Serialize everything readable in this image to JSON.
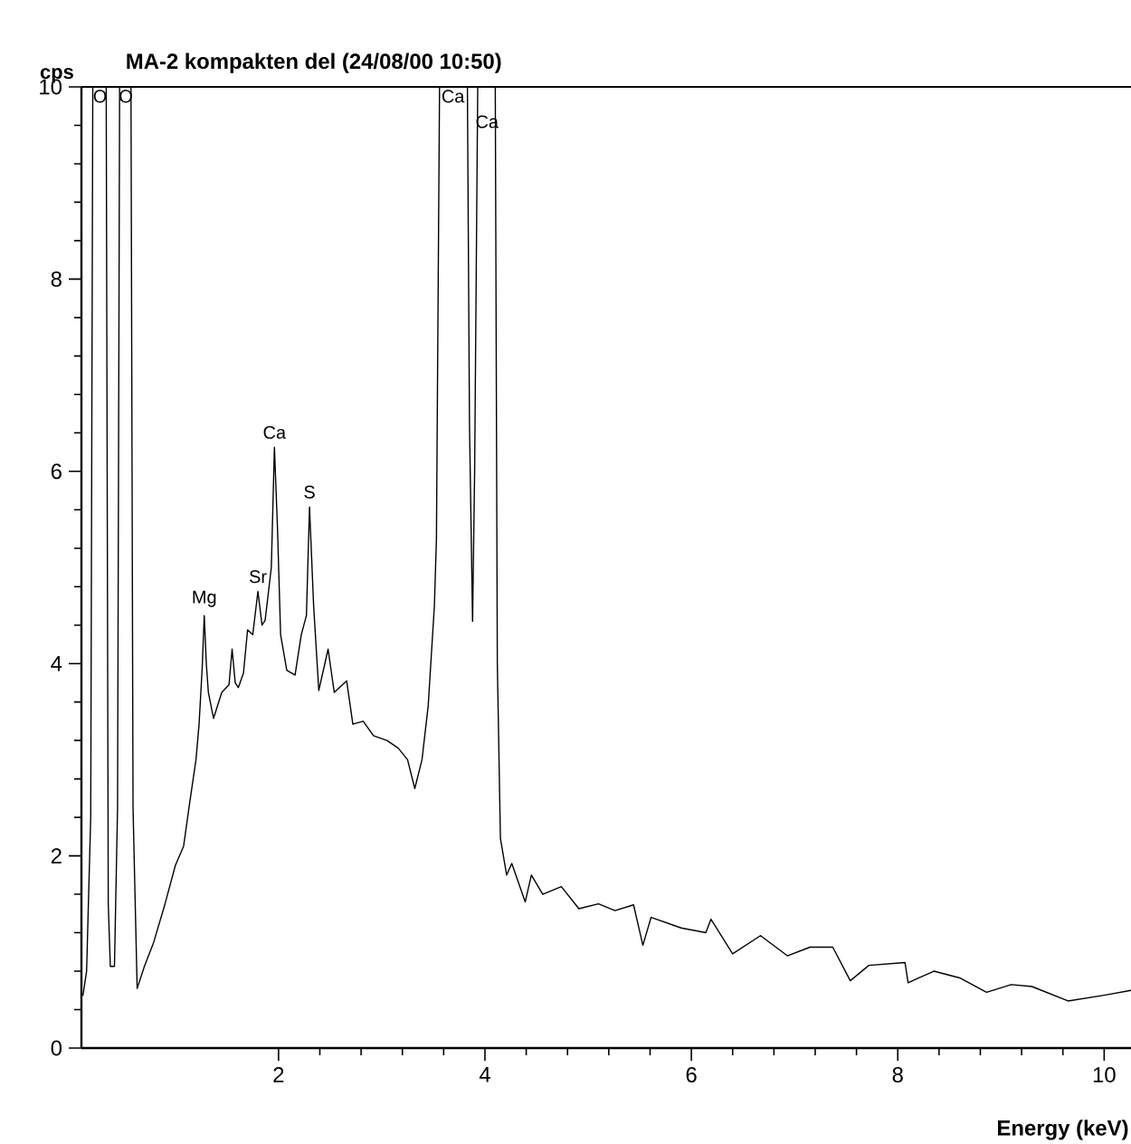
{
  "chart_data": {
    "type": "line",
    "title": "MA-2  kompakten del (24/08/00 10:50)",
    "xlabel": "Energy (keV)",
    "ylabel": "cps",
    "xlim": [
      0.09,
      10.26
    ],
    "ylim": [
      0,
      10
    ],
    "xticks": [
      2,
      4,
      6,
      8,
      10
    ],
    "yticks": [
      0,
      2,
      4,
      6,
      8,
      10
    ],
    "grid": false,
    "marker": "none",
    "line_style": "solid",
    "series": [
      {
        "color": "#000000",
        "x": [
          0.105,
          0.14,
          0.18,
          0.2,
          0.33,
          0.35,
          0.37,
          0.41,
          0.44,
          0.46,
          0.57,
          0.59,
          0.63,
          0.7,
          0.79,
          0.9,
          1.0,
          1.08,
          1.14,
          1.2,
          1.23,
          1.26,
          1.28,
          1.3,
          1.32,
          1.37,
          1.45,
          1.52,
          1.55,
          1.58,
          1.61,
          1.66,
          1.7,
          1.75,
          1.8,
          1.84,
          1.87,
          1.93,
          1.96,
          1.99,
          2.02,
          2.08,
          2.16,
          2.22,
          2.27,
          2.3,
          2.34,
          2.39,
          2.48,
          2.54,
          2.66,
          2.72,
          2.82,
          2.92,
          3.05,
          3.16,
          3.25,
          3.32,
          3.39,
          3.45,
          3.51,
          3.53,
          3.56,
          3.83,
          3.85,
          3.88,
          3.9,
          3.93,
          4.1,
          4.12,
          4.15,
          4.21,
          4.26,
          4.39,
          4.45,
          4.56,
          4.74,
          4.91,
          5.1,
          5.26,
          5.44,
          5.53,
          5.61,
          5.9,
          6.14,
          6.19,
          6.4,
          6.67,
          6.93,
          7.15,
          7.37,
          7.54,
          7.72,
          8.07,
          8.1,
          8.35,
          8.6,
          8.86,
          9.1,
          9.3,
          9.65,
          10.0,
          10.26
        ],
        "values": [
          0.55,
          0.8,
          2.4,
          10,
          10,
          1.5,
          0.85,
          0.85,
          2.5,
          10,
          10,
          2.5,
          0.62,
          0.85,
          1.1,
          1.5,
          1.9,
          2.1,
          2.56,
          3.0,
          3.37,
          3.95,
          4.5,
          4.0,
          3.7,
          3.43,
          3.7,
          3.78,
          4.15,
          3.8,
          3.75,
          3.9,
          4.35,
          4.3,
          4.75,
          4.4,
          4.45,
          5.0,
          6.25,
          5.4,
          4.3,
          3.93,
          3.88,
          4.3,
          4.5,
          5.63,
          4.6,
          3.72,
          4.15,
          3.7,
          3.82,
          3.37,
          3.4,
          3.25,
          3.2,
          3.12,
          3.0,
          2.7,
          3.0,
          3.56,
          4.6,
          5.3,
          10,
          10,
          6.5,
          4.44,
          6.0,
          10,
          10,
          4.0,
          2.18,
          1.8,
          1.92,
          1.52,
          1.8,
          1.6,
          1.68,
          1.45,
          1.5,
          1.43,
          1.49,
          1.07,
          1.36,
          1.25,
          1.2,
          1.34,
          0.98,
          1.17,
          0.96,
          1.05,
          1.05,
          0.7,
          0.86,
          0.89,
          0.68,
          0.8,
          0.73,
          0.58,
          0.66,
          0.64,
          0.49,
          0.55,
          0.6
        ]
      }
    ],
    "annotations": [
      {
        "text": "O",
        "x": 0.27,
        "y": 10
      },
      {
        "text": "O",
        "x": 0.52,
        "y": 10
      },
      {
        "text": "Ca",
        "x": 3.69,
        "y": 10
      },
      {
        "text": "Ca",
        "x": 4.02,
        "y": 10
      },
      {
        "text": "Ca",
        "x": 1.96,
        "y": 6.25
      },
      {
        "text": "S",
        "x": 2.3,
        "y": 5.63
      },
      {
        "text": "Mg",
        "x": 1.28,
        "y": 4.5
      },
      {
        "text": "Sr",
        "x": 1.8,
        "y": 4.75
      }
    ]
  }
}
